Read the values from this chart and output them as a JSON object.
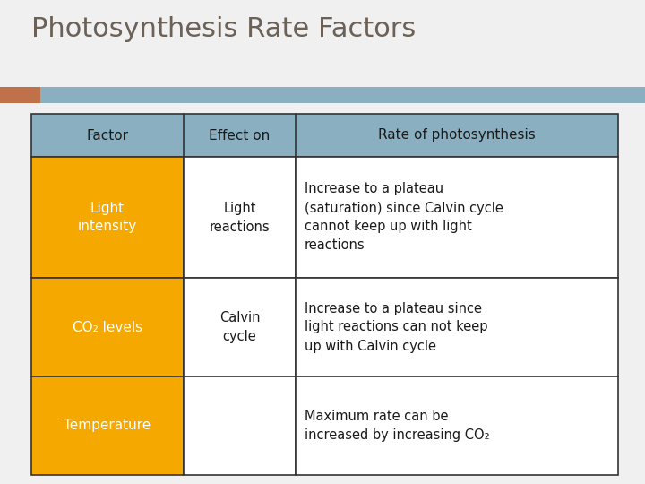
{
  "title": "Photosynthesis Rate Factors",
  "title_color": "#6b6157",
  "title_fontsize": 22,
  "background_color": "#f0f0f0",
  "header_bg_color": "#8aafc0",
  "orange_color": "#f5a800",
  "border_color": "#333333",
  "accent_bar_blue": "#8aafc0",
  "accent_bar_orange": "#c0714a",
  "header_row": [
    "Factor",
    "Effect on",
    "Rate of photosynthesis"
  ],
  "rows": [
    {
      "factor": "Light\nintensity",
      "effect_on": "Light\nreactions",
      "rate": "Increase to a plateau\n(saturation) since Calvin cycle\ncannot keep up with light\nreactions"
    },
    {
      "factor": "CO₂ levels",
      "effect_on": "Calvin\ncycle",
      "rate": "Increase to a plateau since\nlight reactions can not keep\nup with Calvin cycle"
    },
    {
      "factor": "Temperature",
      "effect_on": "",
      "rate": "Maximum rate can be\nincreased by increasing CO₂"
    }
  ],
  "header_fontsize": 11,
  "cell_fontsize": 10.5,
  "factor_fontsize": 11
}
